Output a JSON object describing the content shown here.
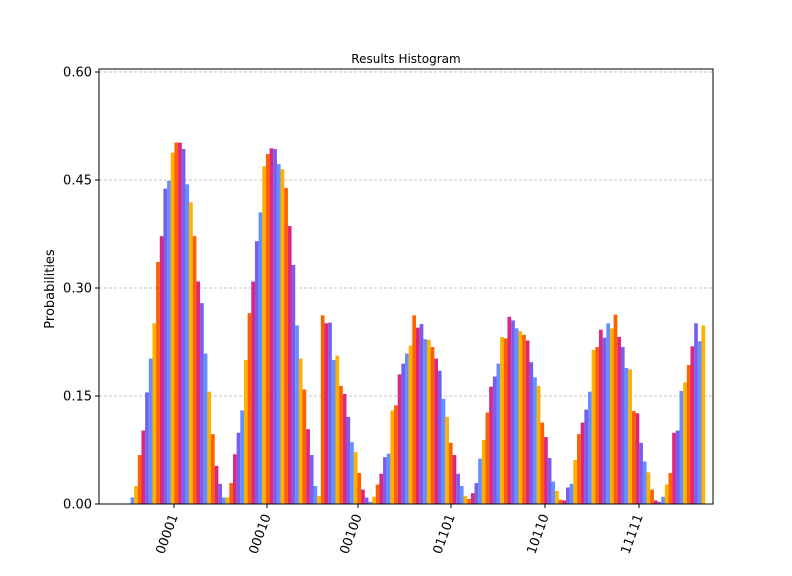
{
  "chart_data": {
    "type": "bar",
    "title": "Results Histogram",
    "xlabel": "",
    "ylabel": "Probabilities",
    "ylim": [
      0,
      0.6
    ],
    "yticks": [
      "0.00",
      "0.15",
      "0.30",
      "0.45",
      "0.60"
    ],
    "grid": "horizontal dashed",
    "categories": [
      "00001",
      "00010",
      "00100",
      "01101",
      "10110",
      "11111"
    ],
    "palette": [
      "#648fff",
      "#ffb000",
      "#fe6100",
      "#dc267f",
      "#785ef0"
    ],
    "series_values": [
      0.009,
      0.025,
      0.068,
      0.102,
      0.155,
      0.202,
      0.251,
      0.336,
      0.372,
      0.438,
      0.449,
      0.488,
      0.502,
      0.502,
      0.493,
      0.444,
      0.419,
      0.372,
      0.309,
      0.279,
      0.209,
      0.156,
      0.097,
      0.053,
      0.028,
      0.009,
      0.009,
      0.029,
      0.069,
      0.099,
      0.13,
      0.2,
      0.265,
      0.309,
      0.365,
      0.405,
      0.469,
      0.486,
      0.494,
      0.493,
      0.472,
      0.465,
      0.439,
      0.386,
      0.332,
      0.248,
      0.202,
      0.159,
      0.104,
      0.068,
      0.025,
      0.011,
      0.262,
      0.251,
      0.252,
      0.2,
      0.206,
      0.164,
      0.153,
      0.121,
      0.086,
      0.072,
      0.043,
      0.02,
      0.009,
      0.003,
      0.01,
      0.027,
      0.042,
      0.065,
      0.07,
      0.13,
      0.137,
      0.18,
      0.195,
      0.209,
      0.22,
      0.262,
      0.245,
      0.25,
      0.229,
      0.228,
      0.218,
      0.202,
      0.185,
      0.146,
      0.121,
      0.085,
      0.068,
      0.042,
      0.025,
      0.011,
      0.007,
      0.015,
      0.029,
      0.063,
      0.089,
      0.127,
      0.163,
      0.177,
      0.195,
      0.232,
      0.23,
      0.26,
      0.255,
      0.244,
      0.24,
      0.235,
      0.227,
      0.197,
      0.176,
      0.164,
      0.113,
      0.093,
      0.064,
      0.031,
      0.018,
      0.006,
      0.005,
      0.023,
      0.028,
      0.061,
      0.097,
      0.113,
      0.131,
      0.156,
      0.214,
      0.218,
      0.242,
      0.231,
      0.251,
      0.244,
      0.263,
      0.232,
      0.218,
      0.189,
      0.187,
      0.129,
      0.126,
      0.085,
      0.059,
      0.044,
      0.02,
      0.005,
      0.003,
      0.01,
      0.027,
      0.043,
      0.099,
      0.102,
      0.157,
      0.169,
      0.193,
      0.219,
      0.251,
      0.226,
      0.248
    ]
  }
}
